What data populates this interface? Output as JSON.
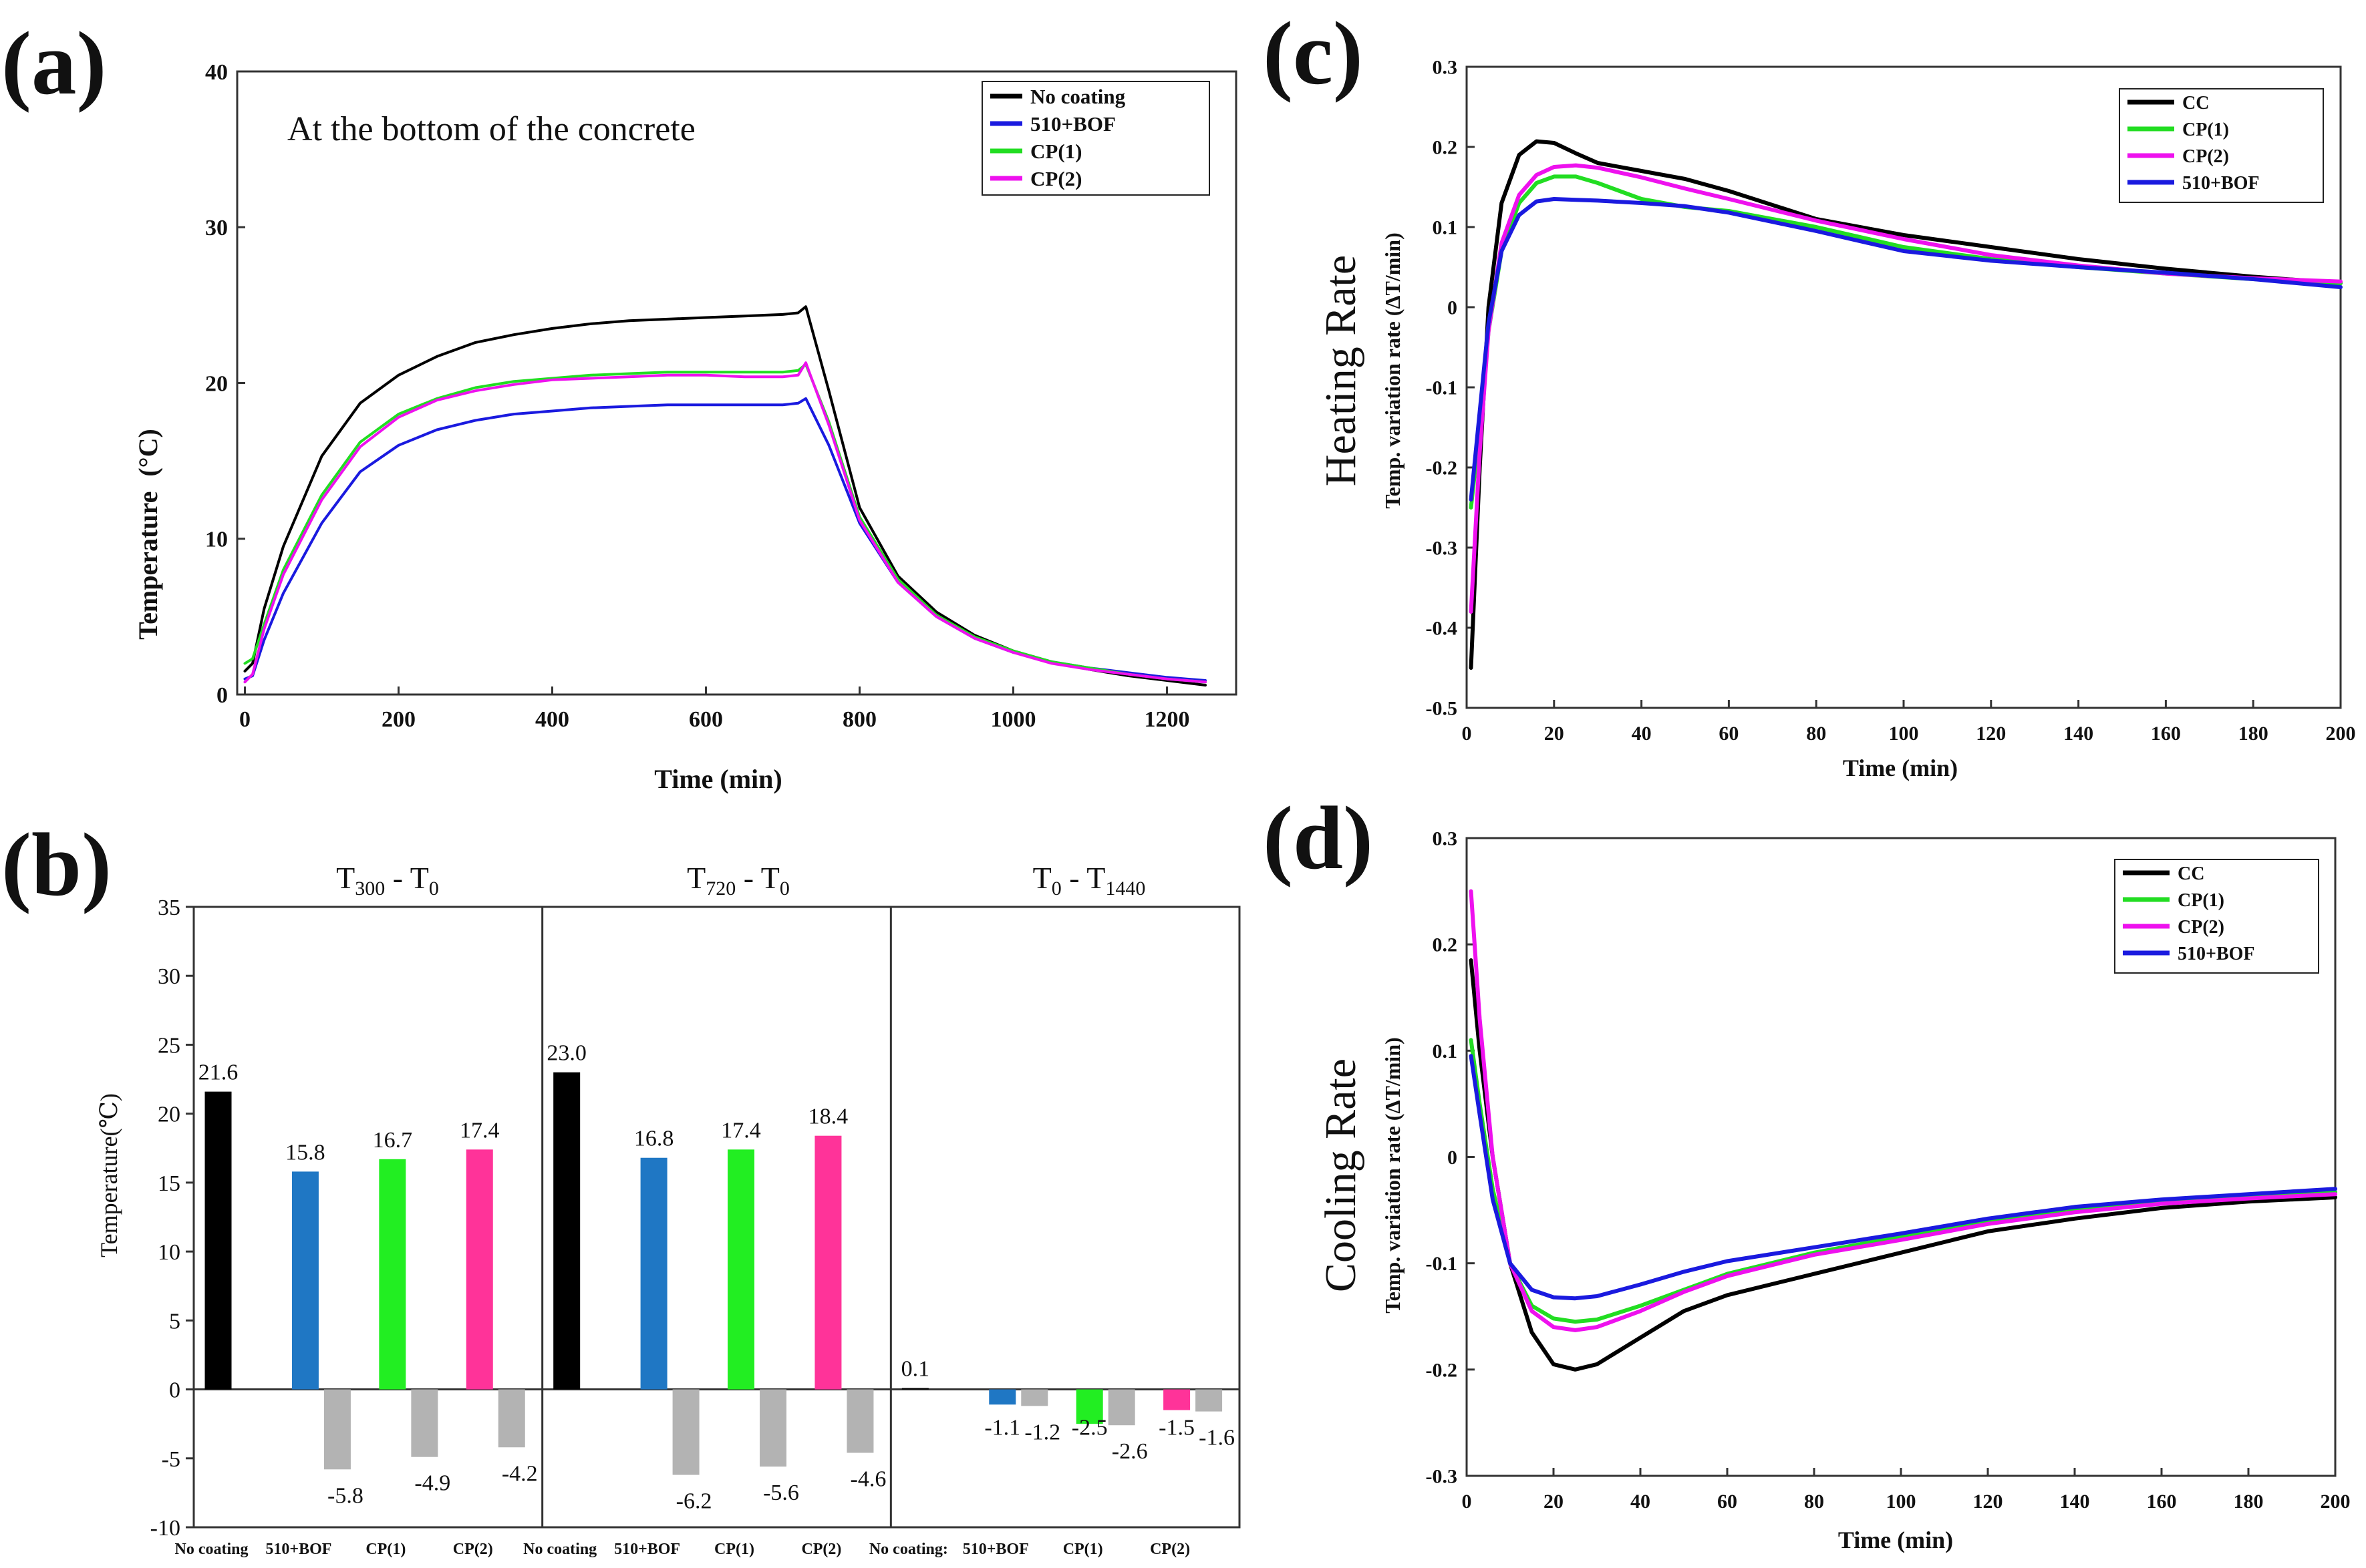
{
  "chart_data": [
    {
      "id": "a",
      "panel_label": "(a)",
      "type": "line",
      "annotation": "At the bottom of the concrete",
      "xlabel": "Time (min)",
      "ylabel": "Temperature",
      "ylabel_unit": "(°C)",
      "xlim": [
        -10,
        1290
      ],
      "ylim": [
        0,
        40
      ],
      "xticks": [
        0,
        200,
        400,
        600,
        800,
        1000,
        1200
      ],
      "yticks": [
        0,
        10,
        20,
        30,
        40
      ],
      "legend": "top-right",
      "series": [
        {
          "name": "No coating",
          "color": "#000000",
          "x": [
            0,
            10,
            25,
            50,
            100,
            150,
            200,
            250,
            300,
            350,
            400,
            450,
            500,
            550,
            600,
            650,
            700,
            720,
            730,
            760,
            800,
            850,
            900,
            950,
            1000,
            1050,
            1100,
            1150,
            1200,
            1250
          ],
          "y": [
            1.5,
            2.0,
            5.5,
            9.5,
            15.3,
            18.7,
            20.5,
            21.7,
            22.6,
            23.1,
            23.5,
            23.8,
            24.0,
            24.1,
            24.2,
            24.3,
            24.4,
            24.5,
            24.9,
            19.5,
            12.0,
            7.6,
            5.3,
            3.8,
            2.8,
            2.1,
            1.6,
            1.2,
            0.9,
            0.6
          ]
        },
        {
          "name": "510+BOF",
          "color": "#1a1adf",
          "x": [
            0,
            10,
            25,
            50,
            100,
            150,
            200,
            250,
            300,
            350,
            400,
            450,
            500,
            550,
            600,
            650,
            700,
            720,
            730,
            760,
            800,
            850,
            900,
            950,
            1000,
            1050,
            1100,
            1150,
            1200,
            1250
          ],
          "y": [
            1.0,
            1.2,
            3.5,
            6.5,
            11.0,
            14.3,
            16.0,
            17.0,
            17.6,
            18.0,
            18.2,
            18.4,
            18.5,
            18.6,
            18.6,
            18.6,
            18.6,
            18.7,
            19.0,
            16.0,
            11.0,
            7.2,
            5.0,
            3.6,
            2.7,
            2.1,
            1.7,
            1.4,
            1.1,
            0.9
          ]
        },
        {
          "name": "CP(1)",
          "color": "#22dd22",
          "x": [
            0,
            10,
            25,
            50,
            100,
            150,
            200,
            250,
            300,
            350,
            400,
            450,
            500,
            550,
            600,
            650,
            700,
            720,
            730,
            760,
            800,
            850,
            900,
            950,
            1000,
            1050,
            1100,
            1150,
            1200,
            1250
          ],
          "y": [
            2.0,
            2.3,
            4.5,
            8.0,
            12.8,
            16.2,
            18.0,
            19.0,
            19.7,
            20.1,
            20.3,
            20.5,
            20.6,
            20.7,
            20.7,
            20.7,
            20.7,
            20.8,
            21.2,
            17.5,
            11.4,
            7.4,
            5.1,
            3.7,
            2.8,
            2.1,
            1.7,
            1.3,
            1.0,
            0.8
          ]
        },
        {
          "name": "CP(2)",
          "color": "#ee11ee",
          "x": [
            0,
            10,
            25,
            50,
            100,
            150,
            200,
            250,
            300,
            350,
            400,
            450,
            500,
            550,
            600,
            650,
            700,
            720,
            730,
            760,
            800,
            850,
            900,
            950,
            1000,
            1050,
            1100,
            1150,
            1200,
            1250
          ],
          "y": [
            0.8,
            1.3,
            4.2,
            7.7,
            12.5,
            15.9,
            17.8,
            18.9,
            19.5,
            19.9,
            20.2,
            20.3,
            20.4,
            20.5,
            20.5,
            20.4,
            20.4,
            20.5,
            21.3,
            17.3,
            11.2,
            7.2,
            5.0,
            3.6,
            2.7,
            2.0,
            1.6,
            1.3,
            1.0,
            0.8
          ]
        }
      ]
    },
    {
      "id": "b",
      "panel_label": "(b)",
      "type": "bar",
      "ylabel": "Temperature(℃)",
      "ylim": [
        -10,
        35
      ],
      "yticks": [
        -10,
        -5,
        0,
        5,
        10,
        15,
        20,
        25,
        30,
        35
      ],
      "groups": [
        {
          "title_main": "T",
          "title_sub1": "300",
          "title_mid": " - T",
          "title_sub2": "0",
          "categories": [
            "No coating",
            "510+BOF",
            "CP(1)",
            "CP(2)"
          ],
          "bars": [
            {
              "value": 21.6,
              "color": "#000000",
              "label": "21.6"
            },
            {
              "value": 15.8,
              "color": "#1f77c4",
              "label": "15.8"
            },
            {
              "value": 16.7,
              "color": "#22ee22",
              "label": "16.7"
            },
            {
              "value": 17.4,
              "color": "#ff3399",
              "label": "17.4"
            }
          ],
          "diffs": [
            {
              "value": -5.8,
              "label": "-5.8"
            },
            {
              "value": -4.9,
              "label": "-4.9"
            },
            {
              "value": -4.2,
              "label": "-4.2"
            }
          ]
        },
        {
          "title_main": "T",
          "title_sub1": "720",
          "title_mid": " - T",
          "title_sub2": "0",
          "categories": [
            "No coating",
            "510+BOF",
            "CP(1)",
            "CP(2)"
          ],
          "bars": [
            {
              "value": 23.0,
              "color": "#000000",
              "label": "23.0"
            },
            {
              "value": 16.8,
              "color": "#1f77c4",
              "label": "16.8"
            },
            {
              "value": 17.4,
              "color": "#22ee22",
              "label": "17.4"
            },
            {
              "value": 18.4,
              "color": "#ff3399",
              "label": "18.4"
            }
          ],
          "diffs": [
            {
              "value": -6.2,
              "label": "-6.2"
            },
            {
              "value": -5.6,
              "label": "-5.6"
            },
            {
              "value": -4.6,
              "label": "-4.6"
            }
          ]
        },
        {
          "title_main": "T",
          "title_sub1": "0",
          "title_mid": " - T",
          "title_sub2": "1440",
          "categories": [
            "No coating:",
            "510+BOF",
            "CP(1)",
            "CP(2)"
          ],
          "bars": [
            {
              "value": 0.1,
              "color": "#000000",
              "label": "0.1"
            },
            {
              "value": -1.1,
              "color": "#1f77c4",
              "label": "-1.1"
            },
            {
              "value": -2.5,
              "color": "#22ee22",
              "label": "-2.5"
            },
            {
              "value": -1.5,
              "color": "#ff3399",
              "label": "-1.5"
            }
          ],
          "diffs": [
            {
              "value": -1.2,
              "label": "-1.2"
            },
            {
              "value": -2.6,
              "label": "-2.6"
            },
            {
              "value": -1.6,
              "label": "-1.6"
            }
          ]
        }
      ],
      "diff_color": "#b3b3b3"
    },
    {
      "id": "c",
      "panel_label": "(c)",
      "type": "line",
      "xlabel": "Time (min)",
      "ylabel_main": "Heating Rate",
      "ylabel_sub": "Temp. variation rate (ΔT/min)",
      "xlim": [
        0,
        200
      ],
      "ylim": [
        -0.5,
        0.3
      ],
      "xticks": [
        0,
        20,
        40,
        60,
        80,
        100,
        120,
        140,
        160,
        180,
        200
      ],
      "yticks": [
        -0.5,
        -0.4,
        -0.3,
        -0.2,
        -0.1,
        0,
        0.1,
        0.2,
        0.3
      ],
      "legend": "top-right",
      "series": [
        {
          "name": "CC",
          "color": "#000000",
          "x": [
            1,
            3,
            5,
            8,
            12,
            16,
            20,
            25,
            30,
            40,
            50,
            60,
            80,
            100,
            120,
            140,
            160,
            180,
            200
          ],
          "y": [
            -0.45,
            -0.2,
            0.0,
            0.13,
            0.19,
            0.207,
            0.205,
            0.192,
            0.18,
            0.17,
            0.16,
            0.145,
            0.11,
            0.09,
            0.075,
            0.06,
            0.048,
            0.038,
            0.03
          ]
        },
        {
          "name": "CP(1)",
          "color": "#22dd22",
          "x": [
            1,
            3,
            5,
            8,
            12,
            16,
            20,
            25,
            30,
            40,
            50,
            60,
            80,
            100,
            120,
            140,
            160,
            180,
            200
          ],
          "y": [
            -0.25,
            -0.15,
            -0.03,
            0.07,
            0.13,
            0.155,
            0.163,
            0.163,
            0.155,
            0.135,
            0.125,
            0.12,
            0.1,
            0.075,
            0.06,
            0.05,
            0.042,
            0.035,
            0.03
          ]
        },
        {
          "name": "CP(2)",
          "color": "#ee11ee",
          "x": [
            1,
            3,
            5,
            8,
            12,
            16,
            20,
            25,
            30,
            40,
            50,
            60,
            80,
            100,
            120,
            140,
            160,
            180,
            200
          ],
          "y": [
            -0.38,
            -0.18,
            -0.03,
            0.08,
            0.14,
            0.165,
            0.175,
            0.177,
            0.174,
            0.162,
            0.148,
            0.135,
            0.108,
            0.085,
            0.065,
            0.052,
            0.042,
            0.036,
            0.032
          ]
        },
        {
          "name": "510+BOF",
          "color": "#1a1adf",
          "x": [
            1,
            3,
            5,
            8,
            12,
            16,
            20,
            25,
            30,
            40,
            50,
            60,
            80,
            100,
            120,
            140,
            160,
            180,
            200
          ],
          "y": [
            -0.24,
            -0.13,
            -0.02,
            0.07,
            0.115,
            0.132,
            0.135,
            0.134,
            0.133,
            0.13,
            0.126,
            0.118,
            0.095,
            0.07,
            0.058,
            0.05,
            0.043,
            0.035,
            0.025
          ]
        }
      ]
    },
    {
      "id": "d",
      "panel_label": "(d)",
      "type": "line",
      "xlabel": "Time (min)",
      "ylabel_main": "Cooling Rate",
      "ylabel_sub": "Temp. variation rate (ΔT/min)",
      "xlim": [
        0,
        200
      ],
      "ylim": [
        -0.3,
        0.3
      ],
      "xticks": [
        0,
        20,
        40,
        60,
        80,
        100,
        120,
        140,
        160,
        180,
        200
      ],
      "yticks": [
        -0.3,
        -0.2,
        -0.1,
        0,
        0.1,
        0.2,
        0.3
      ],
      "legend": "top-right",
      "series": [
        {
          "name": "CC",
          "color": "#000000",
          "x": [
            1,
            3,
            6,
            10,
            15,
            20,
            25,
            30,
            40,
            50,
            60,
            80,
            100,
            120,
            140,
            160,
            180,
            200
          ],
          "y": [
            0.185,
            0.1,
            0.0,
            -0.1,
            -0.165,
            -0.195,
            -0.2,
            -0.195,
            -0.17,
            -0.145,
            -0.13,
            -0.11,
            -0.09,
            -0.07,
            -0.058,
            -0.048,
            -0.042,
            -0.038
          ]
        },
        {
          "name": "CP(1)",
          "color": "#22dd22",
          "x": [
            1,
            3,
            6,
            10,
            15,
            20,
            25,
            30,
            40,
            50,
            60,
            80,
            100,
            120,
            140,
            160,
            180,
            200
          ],
          "y": [
            0.11,
            0.05,
            -0.03,
            -0.1,
            -0.14,
            -0.152,
            -0.155,
            -0.153,
            -0.14,
            -0.125,
            -0.11,
            -0.09,
            -0.075,
            -0.06,
            -0.05,
            -0.042,
            -0.037,
            -0.033
          ]
        },
        {
          "name": "CP(2)",
          "color": "#ee11ee",
          "x": [
            1,
            3,
            6,
            10,
            15,
            20,
            25,
            30,
            40,
            50,
            60,
            80,
            100,
            120,
            140,
            160,
            180,
            200
          ],
          "y": [
            0.25,
            0.13,
            0.0,
            -0.1,
            -0.145,
            -0.16,
            -0.163,
            -0.16,
            -0.145,
            -0.127,
            -0.112,
            -0.092,
            -0.078,
            -0.063,
            -0.052,
            -0.044,
            -0.039,
            -0.035
          ]
        },
        {
          "name": "510+BOF",
          "color": "#1a1adf",
          "x": [
            1,
            3,
            6,
            10,
            15,
            20,
            25,
            30,
            40,
            50,
            60,
            80,
            100,
            120,
            140,
            160,
            180,
            200
          ],
          "y": [
            0.095,
            0.04,
            -0.04,
            -0.1,
            -0.125,
            -0.132,
            -0.133,
            -0.131,
            -0.12,
            -0.108,
            -0.098,
            -0.085,
            -0.072,
            -0.058,
            -0.047,
            -0.04,
            -0.035,
            -0.03
          ]
        }
      ]
    }
  ]
}
